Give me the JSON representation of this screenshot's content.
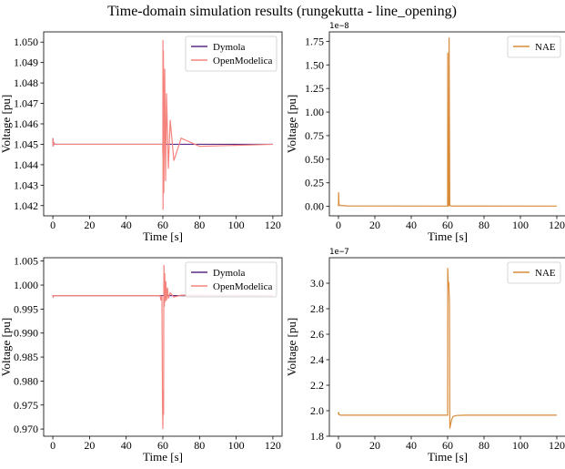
{
  "figure": {
    "suptitle": "Time-domain simulation results (rungekutta - line_opening)"
  },
  "chart_data": [
    {
      "type": "line",
      "title": "",
      "xlabel": "Time [s]",
      "ylabel": "Voltage [pu]",
      "xlim": [
        -5,
        125
      ],
      "ylim": [
        1.0415,
        1.0505
      ],
      "xticks": [
        0,
        20,
        40,
        60,
        80,
        100,
        120
      ],
      "xtick_labels": [
        "0",
        "20",
        "40",
        "60",
        "80",
        "100",
        "120"
      ],
      "yticks": [
        1.042,
        1.043,
        1.044,
        1.045,
        1.046,
        1.047,
        1.048,
        1.049,
        1.05
      ],
      "ytick_labels": [
        "1.042",
        "1.043",
        "1.044",
        "1.045",
        "1.046",
        "1.047",
        "1.048",
        "1.049",
        "1.050"
      ],
      "offset_label": "",
      "legend": {
        "position": "top-right"
      },
      "series": [
        {
          "name": "Dymola",
          "color": "#5b2a86",
          "x": [
            0,
            0.1,
            0.2,
            0.4,
            1,
            2,
            60,
            120
          ],
          "y": [
            1.045,
            1.0453,
            1.0449,
            1.0451,
            1.045,
            1.045,
            1.045,
            1.045
          ]
        },
        {
          "name": "OpenModelica",
          "color": "#f4837d",
          "x": [
            0,
            0.1,
            0.2,
            0.4,
            1,
            2,
            59.9,
            60,
            60.05,
            60.1,
            60.3,
            60.5,
            61,
            61.5,
            62,
            63,
            64,
            66,
            70,
            80,
            120
          ],
          "y": [
            1.045,
            1.0453,
            1.0449,
            1.0451,
            1.045,
            1.045,
            1.045,
            1.0445,
            1.0501,
            1.0418,
            1.0496,
            1.0426,
            1.0487,
            1.0432,
            1.0475,
            1.0438,
            1.0462,
            1.0442,
            1.0453,
            1.0449,
            1.045
          ]
        }
      ]
    },
    {
      "type": "line",
      "title": "",
      "xlabel": "Time [s]",
      "ylabel": "Voltage [pu]",
      "xlim": [
        -5,
        125
      ],
      "ylim": [
        -0.1,
        1.85
      ],
      "xticks": [
        0,
        20,
        40,
        60,
        80,
        100,
        120
      ],
      "xtick_labels": [
        "0",
        "20",
        "40",
        "60",
        "80",
        "100",
        "120"
      ],
      "yticks": [
        0,
        0.25,
        0.5,
        0.75,
        1.0,
        1.25,
        1.5,
        1.75
      ],
      "ytick_labels": [
        "0.00",
        "0.25",
        "0.50",
        "0.75",
        "1.00",
        "1.25",
        "1.50",
        "1.75"
      ],
      "offset_label": "1e−8",
      "legend": {
        "position": "top-right"
      },
      "series": [
        {
          "name": "NAE",
          "color": "#d98b3a",
          "x": [
            0,
            0.1,
            0.3,
            1,
            5,
            60,
            60.05,
            60.1,
            60.3,
            60.6,
            60.8,
            61.2,
            62,
            120
          ],
          "y": [
            0,
            0.15,
            0.02,
            0.01,
            0.005,
            0.003,
            1.63,
            0.005,
            0.004,
            0.006,
            1.79,
            0.01,
            0.004,
            0.003
          ]
        }
      ]
    },
    {
      "type": "line",
      "title": "",
      "xlabel": "Time [s]",
      "ylabel": "Voltage [pu]",
      "xlim": [
        -5,
        125
      ],
      "ylim": [
        0.9685,
        1.0057
      ],
      "xticks": [
        0,
        20,
        40,
        60,
        80,
        100,
        120
      ],
      "xtick_labels": [
        "0",
        "20",
        "40",
        "60",
        "80",
        "100",
        "120"
      ],
      "yticks": [
        0.97,
        0.975,
        0.98,
        0.985,
        0.99,
        0.995,
        1.0,
        1.005
      ],
      "ytick_labels": [
        "0.970",
        "0.975",
        "0.980",
        "0.985",
        "0.990",
        "0.995",
        "1.000",
        "1.005"
      ],
      "offset_label": "",
      "legend": {
        "position": "top-right"
      },
      "series": [
        {
          "name": "Dymola",
          "color": "#5b2a86",
          "x": [
            0,
            0.1,
            0.2,
            0.5,
            1,
            60,
            120
          ],
          "y": [
            0.9975,
            0.9979,
            0.9976,
            0.9978,
            0.9978,
            0.9978,
            0.9978
          ]
        },
        {
          "name": "OpenModelica",
          "color": "#f4837d",
          "x": [
            0,
            0.1,
            0.2,
            0.5,
            1,
            58.5,
            59,
            59.5,
            59.8,
            60,
            60.2,
            60.4,
            60.5,
            60.6,
            60.8,
            61,
            61.3,
            61.6,
            62,
            62.5,
            63,
            64,
            66,
            70,
            120
          ],
          "y": [
            0.9975,
            0.9979,
            0.9976,
            0.9978,
            0.9978,
            0.9978,
            0.9968,
            0.9978,
            0.9755,
            0.97,
            0.978,
            0.973,
            0.9978,
            1.0042,
            0.9955,
            1.0025,
            0.9965,
            1.0008,
            0.9968,
            0.9995,
            0.9972,
            0.9984,
            0.9975,
            0.9979,
            0.9978
          ]
        }
      ]
    },
    {
      "type": "line",
      "title": "",
      "xlabel": "Time [s]",
      "ylabel": "Voltage [pu]",
      "xlim": [
        -5,
        125
      ],
      "ylim": [
        1.8,
        3.2
      ],
      "xticks": [
        0,
        20,
        40,
        60,
        80,
        100,
        120
      ],
      "xtick_labels": [
        "0",
        "20",
        "40",
        "60",
        "80",
        "100",
        "120"
      ],
      "yticks": [
        1.8,
        2.0,
        2.2,
        2.4,
        2.6,
        2.8,
        3.0
      ],
      "ytick_labels": [
        "1.8",
        "2.0",
        "2.2",
        "2.4",
        "2.6",
        "2.8",
        "3.0"
      ],
      "offset_label": "1e−7",
      "legend": {
        "position": "top-right"
      },
      "series": [
        {
          "name": "NAE",
          "color": "#d98b3a",
          "x": [
            0,
            0.1,
            0.3,
            1,
            60,
            60.05,
            60.3,
            60.6,
            61,
            61.2,
            61.6,
            62.2,
            63,
            65,
            70,
            120
          ],
          "y": [
            1.97,
            1.99,
            1.97,
            1.965,
            1.965,
            3.12,
            3.0,
            3.01,
            2.85,
            1.86,
            1.89,
            1.93,
            1.955,
            1.963,
            1.965,
            1.965
          ]
        }
      ]
    }
  ]
}
